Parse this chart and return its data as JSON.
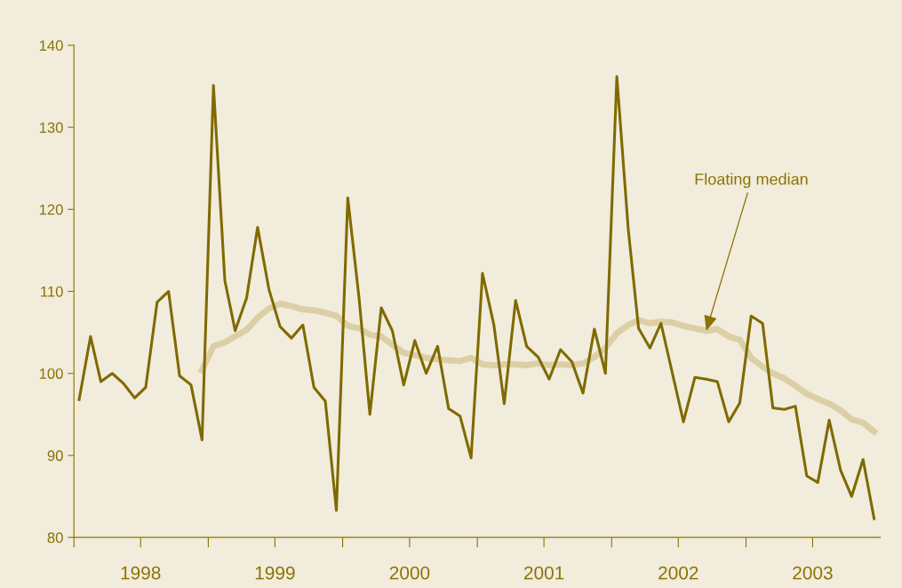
{
  "chart_data": {
    "type": "line",
    "x": [
      "1998-01-15",
      "1998-02-15",
      "1998-03-15",
      "1998-04-15",
      "1998-05-15",
      "1998-06-15",
      "1998-07-15",
      "1998-08-15",
      "1998-09-15",
      "1998-10-15",
      "1998-11-15",
      "1998-12-15",
      "1999-01-15",
      "1999-02-15",
      "1999-03-15",
      "1999-04-15",
      "1999-05-15",
      "1999-06-15",
      "1999-07-15",
      "1999-08-15",
      "1999-09-15",
      "1999-10-15",
      "1999-11-15",
      "1999-12-15",
      "2000-01-15",
      "2000-02-15",
      "2000-03-15",
      "2000-04-15",
      "2000-05-15",
      "2000-06-15",
      "2000-07-15",
      "2000-08-15",
      "2000-09-15",
      "2000-10-15",
      "2000-11-15",
      "2000-12-15",
      "2001-01-15",
      "2001-02-15",
      "2001-03-15",
      "2001-04-15",
      "2001-05-15",
      "2001-06-15",
      "2001-07-15",
      "2001-08-15",
      "2001-09-15",
      "2001-10-15",
      "2001-11-15",
      "2001-12-15",
      "2002-01-15",
      "2002-02-15",
      "2002-03-15",
      "2002-04-15",
      "2002-05-15",
      "2002-06-15",
      "2002-07-15",
      "2002-08-15",
      "2002-09-15",
      "2002-10-15",
      "2002-11-15",
      "2002-12-15",
      "2003-01-15",
      "2003-02-15",
      "2003-03-15",
      "2003-04-15",
      "2003-05-15",
      "2003-06-15",
      "2003-07-15",
      "2003-08-15",
      "2003-09-15",
      "2003-10-15",
      "2003-11-15",
      "2003-12-15"
    ],
    "series": [
      {
        "color": "#dccfa6",
        "values": [
          null,
          null,
          null,
          null,
          null,
          null,
          null,
          null,
          null,
          null,
          null,
          100.4,
          103.3,
          103.8,
          104.5,
          105.3,
          106.8,
          107.9,
          108.5,
          108.2,
          107.8,
          107.7,
          107.4,
          107.0,
          105.8,
          105.5,
          104.7,
          104.5,
          103.5,
          102.5,
          102.2,
          101.9,
          101.7,
          101.6,
          101.5,
          101.9,
          101.1,
          101.0,
          101.1,
          101.1,
          101.0,
          101.2,
          101.0,
          101.1,
          101.0,
          101.2,
          102.0,
          103.1,
          104.9,
          105.9,
          106.5,
          106.1,
          106.3,
          106.2,
          105.8,
          105.5,
          105.2,
          105.4,
          104.5,
          104.1,
          101.9,
          100.8,
          100.0,
          99.4,
          98.5,
          97.5,
          96.9,
          96.3,
          95.5,
          94.4,
          94.0,
          92.9
        ]
      },
      {
        "color": "#7f6a00",
        "values": [
          96.8,
          104.5,
          99.0,
          100.0,
          98.8,
          97.0,
          98.3,
          108.7,
          110.0,
          99.7,
          98.6,
          91.9,
          135.1,
          111.3,
          105.2,
          109.2,
          117.8,
          110.2,
          105.7,
          104.3,
          105.9,
          98.3,
          96.6,
          83.3,
          121.4,
          109,
          95.0,
          108.0,
          105.2,
          98.6,
          104.0,
          100.0,
          103.3,
          95.7,
          94.8,
          89.7,
          112.2,
          105.9,
          96.3,
          108.9,
          103.3,
          102.0,
          99.3,
          102.9,
          101.4,
          97.6,
          105.4,
          100.0,
          136.2,
          117.6,
          105.5,
          103.1,
          106.1,
          100.0,
          94.1,
          99.5,
          99.3,
          99.0,
          94.1,
          96.4,
          107.0,
          106.1,
          95.8,
          95.6,
          96.0,
          87.5,
          86.7,
          94.3,
          88.2,
          85.0,
          89.5,
          82.3
        ]
      }
    ],
    "xlim": [
      "1998-01-01",
      "2004-01-01"
    ],
    "xticks": [
      {
        "value": "1998-01-01",
        "label": null
      },
      {
        "value": "1998-07-01",
        "label": "1998"
      },
      {
        "value": "1999-01-01",
        "label": null
      },
      {
        "value": "1999-07-01",
        "label": "1999"
      },
      {
        "value": "2000-01-01",
        "label": null
      },
      {
        "value": "2000-07-01",
        "label": "2000"
      },
      {
        "value": "2001-01-01",
        "label": null
      },
      {
        "value": "2001-07-01",
        "label": "2001"
      },
      {
        "value": "2002-01-01",
        "label": null
      },
      {
        "value": "2002-07-01",
        "label": "2002"
      },
      {
        "value": "2003-01-01",
        "label": null
      },
      {
        "value": "2003-07-01",
        "label": "2003"
      }
    ],
    "ylim": [
      80,
      140
    ],
    "yticks": [
      80,
      90,
      100,
      110,
      120,
      130,
      140
    ],
    "annotations": [
      {
        "text": "Floating median",
        "x": "2002-09-15",
        "y": 105.2
      }
    ],
    "grid": false,
    "marker": "none",
    "line_style": "solid"
  }
}
